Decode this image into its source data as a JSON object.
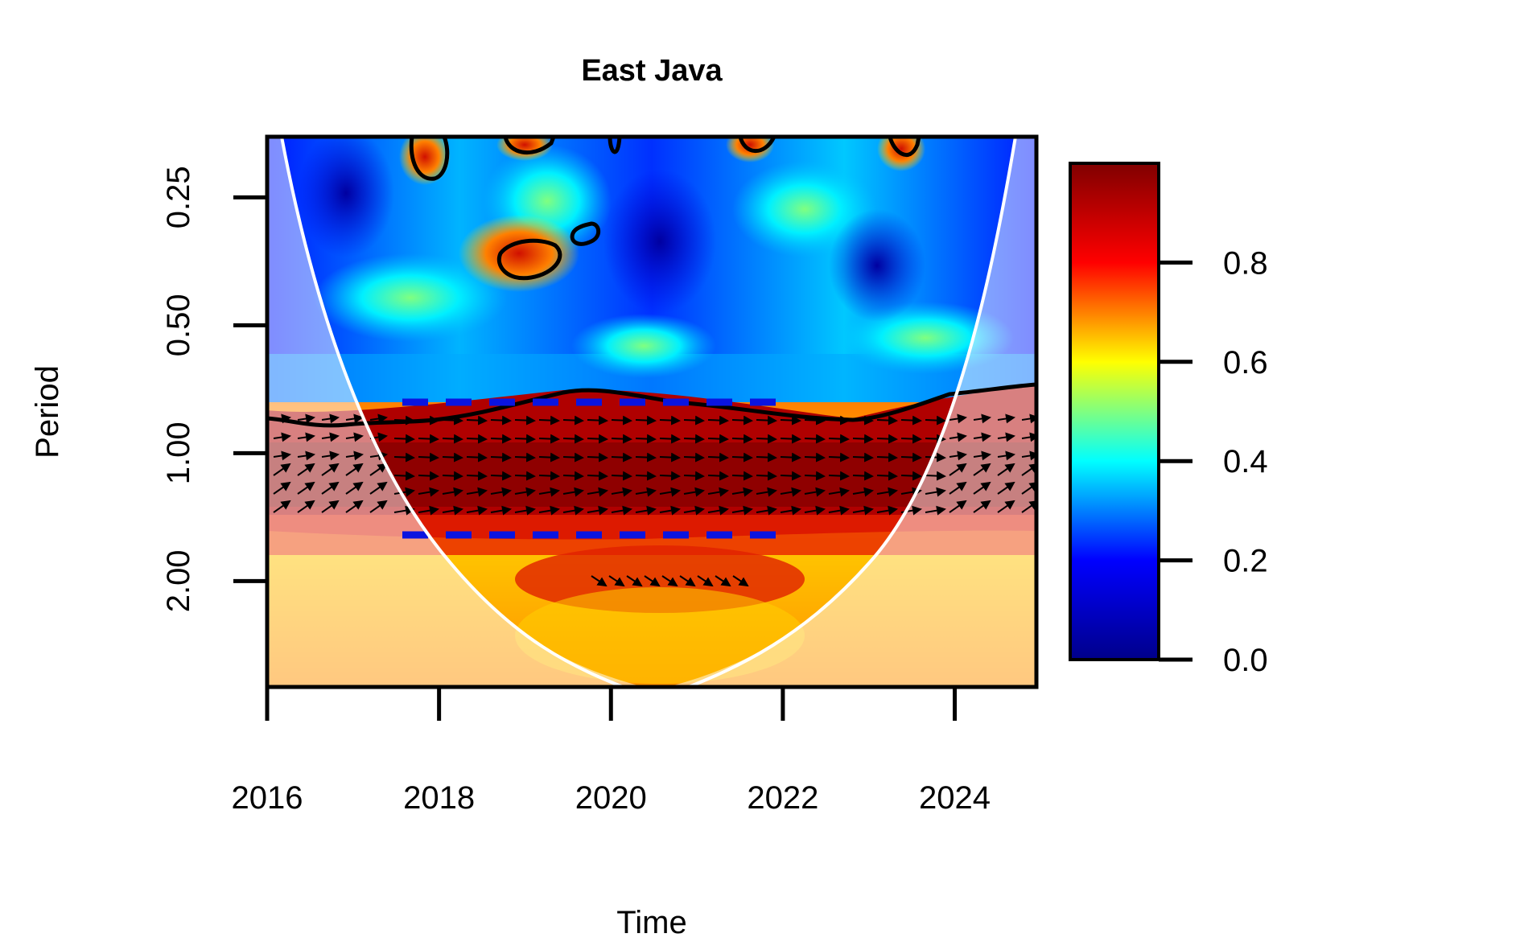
{
  "chart_data": {
    "type": "heatmap",
    "title": "East Java",
    "xlabel": "Time",
    "ylabel": "Period",
    "x_ticks": [
      2016,
      2018,
      2020,
      2022,
      2024
    ],
    "x_tick_labels": [
      "2016",
      "2018",
      "2020",
      "2022",
      "2024"
    ],
    "xlim": [
      2016,
      2024.95
    ],
    "y_ticks": [
      0.25,
      0.5,
      1.0,
      2.0
    ],
    "y_tick_labels": [
      "0.25",
      "0.50",
      "1.00",
      "2.00"
    ],
    "ylim": [
      0.18,
      3.55
    ],
    "y_scale": "log2",
    "y_reversed": true,
    "colorbar": {
      "ticks": [
        0.0,
        0.2,
        0.4,
        0.6,
        0.8
      ],
      "tick_labels": [
        "0.0",
        "0.2",
        "0.4",
        "0.6",
        "0.8"
      ],
      "range": [
        0,
        1
      ],
      "colormap": [
        "#00008a",
        "#0000ff",
        "#00ffff",
        "#ffff00",
        "#ff0000",
        "#800000"
      ]
    },
    "dominant_band": {
      "period_min": 0.68,
      "period_max": 1.45,
      "coherence": 0.95
    },
    "secondary_band": {
      "period": 1.85,
      "time_range": [
        2019.5,
        2021.7
      ],
      "coherence": 0.85
    },
    "significance_level_line": {
      "period_low": 0.68,
      "period_high": 1.4,
      "time_range": [
        2017.5,
        2022
      ],
      "style": "dashed",
      "color": "#0a14e0"
    },
    "cone_of_influence_color": "#ffffff",
    "contour_color": "#000000"
  }
}
